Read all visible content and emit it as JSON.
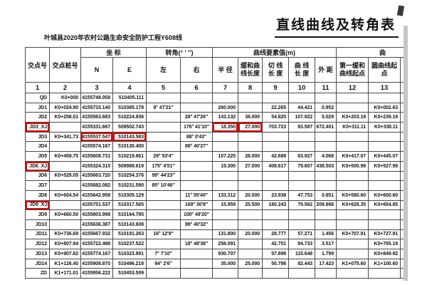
{
  "page": {
    "title": "直线曲线及转角表",
    "subtitle": "叶城县2020年农村公路生命安全防护工程Y608线"
  },
  "table": {
    "groups": {
      "coord": "坐   标",
      "angle": "转角(°  ′  ″)",
      "curve": "曲线要素值(m)",
      "next_group_partial": "曲"
    },
    "headers": [
      "交点号",
      "交点桩号",
      "N",
      "E",
      "左",
      "右",
      "半  径",
      "缓和曲\n线长度",
      "切  线\n长  度",
      "曲  线\n长  度",
      "外  距",
      "第一缓和\n曲线起点",
      "圆曲线起点"
    ],
    "col_numbers": [
      "1",
      "2",
      "3",
      "4",
      "5",
      "6",
      "7",
      "8",
      "9",
      "10",
      "11",
      "12",
      "13"
    ],
    "rows": [
      {
        "cells": [
          "QD",
          "K0+000",
          "4155748.058",
          "510405.111",
          "",
          "",
          "",
          "",
          "",
          "",
          "",
          "",
          ""
        ]
      },
      {
        "cells": [
          "JD1",
          "K0+024.90",
          "4155733.140",
          "510385.178",
          "9° 47′21″",
          "",
          "260.000",
          "",
          "22.265",
          "44.421",
          "0.952",
          "",
          "K0+002.63"
        ]
      },
      {
        "cells": [
          "JD2",
          "K0+258.01",
          "4155563.683",
          "510224.936",
          "",
          "28° 47′26″",
          "143.132",
          "36.000",
          "54.825",
          "107.922",
          "5.029",
          "K0+203.19",
          "K0+239.19"
        ]
      },
      {
        "cells": [
          "JD3_XJ",
          "",
          "4155331.667",
          "509502.743",
          "",
          "176° 41′10″",
          "18.350",
          "27.000",
          "703.723",
          "83.587",
          "672.401",
          "K0+311.11",
          "K0+338.11"
        ]
      },
      {
        "cells": [
          "JD3",
          "K0+341.73",
          "4155537.547",
          "510143.583",
          "",
          "88° 0′43″",
          "",
          "",
          "",
          "",
          "",
          "",
          ""
        ]
      },
      {
        "cells": [
          "JD4",
          "",
          "4155574.167",
          "510130.400",
          "",
          "88° 40′27″",
          "",
          "",
          "",
          "",
          "",
          "",
          ""
        ]
      },
      {
        "cells": [
          "JD5",
          "K0+459.75",
          "4155608.731",
          "510219.861",
          "29° 53′4″",
          "",
          "107.225",
          "28.000",
          "42.688",
          "83.927",
          "4.068",
          "K0+417.07",
          "K0+445.07"
        ]
      },
      {
        "cells": [
          "JD6_XJ",
          "",
          "4155324.315",
          "509989.619",
          "175° 4′51″",
          "",
          "15.300",
          "27.000",
          "408.617",
          "79.607",
          "438.503",
          "K0+500.99",
          "K0+527.99"
        ]
      },
      {
        "cells": [
          "JD6",
          "K0+529.05",
          "4155663.720",
          "510254.376",
          "99° 44′23″",
          "",
          "",
          "",
          "",
          "",
          "",
          "",
          ""
        ]
      },
      {
        "cells": [
          "JD7",
          "",
          "4155682.082",
          "510231.590",
          "85° 10′46″",
          "",
          "",
          "",
          "",
          "",
          "",
          "",
          ""
        ]
      },
      {
        "cells": [
          "JD8",
          "K0+604.54",
          "4155642.958",
          "510305.129",
          "",
          "11° 55′40″",
          "133.312",
          "20.000",
          "23.938",
          "47.753",
          "0.851",
          "K0+580.60",
          "K0+600.60"
        ]
      },
      {
        "cells": [
          "JD9_XJ",
          "",
          "4155751.537",
          "510317.565",
          "",
          "169° 30′8″",
          "15.959",
          "25.500",
          "180.243",
          "79.562",
          "209.968",
          "K0+628.35",
          "K0+654.85"
        ]
      },
      {
        "cells": [
          "JD9",
          "K0+660.50",
          "4155803.998",
          "510164.785",
          "",
          "100° 49′20″",
          "",
          "",
          "",
          "",
          "",
          "",
          ""
        ]
      },
      {
        "cells": [
          "JD10",
          "",
          "4155636.387",
          "510143.608",
          "",
          "89° 40′32″",
          "",
          "",
          "",
          "",
          "",
          "",
          ""
        ]
      },
      {
        "cells": [
          "JD11",
          "K0+736.69",
          "4155667.932",
          "510191.263",
          "16° 12′9″",
          "",
          "131.800",
          "20.000",
          "28.777",
          "57.271",
          "1.456",
          "K0+707.91",
          "K0+727.91"
        ]
      },
      {
        "cells": [
          "JD12",
          "K0+807.94",
          "4155722.488",
          "510237.522",
          "",
          "18° 48′38″",
          "258.091",
          "",
          "42.751",
          "84.733",
          "3.517",
          "",
          "K0+765.19"
        ]
      },
      {
        "cells": [
          "JD13",
          "K0+907.82",
          "4155774.167",
          "510323.891",
          "7° 7′10″",
          "",
          "930.707",
          "",
          "57.898",
          "115.648",
          "1.799",
          "",
          "K0+849.92"
        ]
      },
      {
        "cells": [
          "JD14",
          "K1+126.40",
          "4155908.870",
          "510496.218",
          "94° 2′6″",
          "",
          "35.000",
          "25.000",
          "50.798",
          "82.443",
          "17.423",
          "K1+075.60",
          "K1+100.60"
        ]
      },
      {
        "cells": [
          "ZD",
          "K1+171.01",
          "4155956.222",
          "510453.509",
          "",
          "",
          "",
          "",
          "",
          "",
          "",
          "",
          ""
        ]
      }
    ],
    "highlight_color": "#e00000",
    "highlights": [
      {
        "row": 3,
        "col": 0
      },
      {
        "row": 3,
        "col": 6
      },
      {
        "row": 3,
        "col": 7
      },
      {
        "row": 4,
        "col": 2
      },
      {
        "row": 4,
        "col": 3
      },
      {
        "row": 7,
        "col": 0
      },
      {
        "row": 11,
        "col": 0
      }
    ]
  }
}
